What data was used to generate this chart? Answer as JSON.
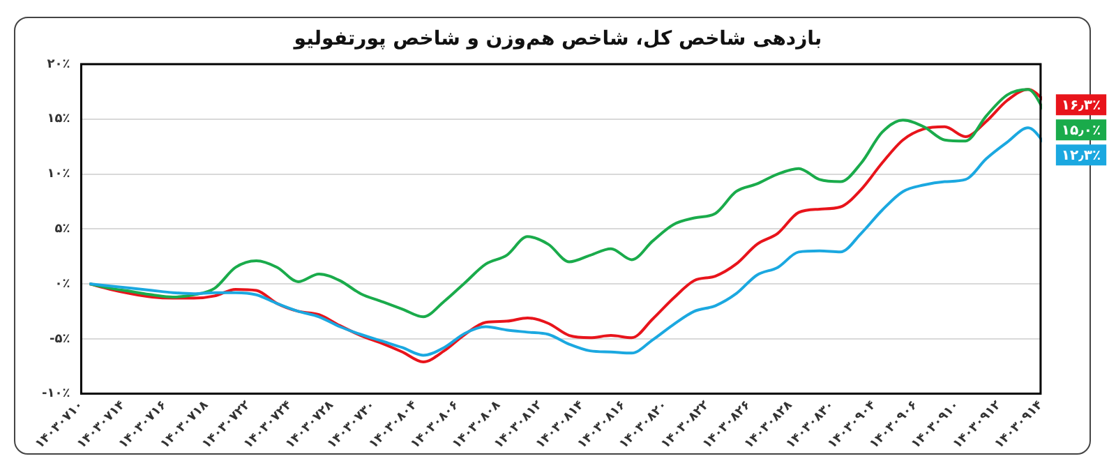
{
  "chart_data": {
    "type": "line",
    "title": "بازدهی شاخص کل، شاخص هم‌وزن و شاخص پورتفولیو",
    "categories": [
      "۱۴۰۳۰۷۱۰",
      null,
      "۱۴۰۳۰۷۱۴",
      null,
      "۱۴۰۳۰۷۱۶",
      null,
      "۱۴۰۳۰۷۱۸",
      null,
      "۱۴۰۳۰۷۲۲",
      null,
      "۱۴۰۳۰۷۲۴",
      null,
      "۱۴۰۳۰۷۲۸",
      null,
      "۱۴۰۳۰۷۳۰",
      null,
      "۱۴۰۳۰۸۰۴",
      null,
      "۱۴۰۳۰۸۰۶",
      null,
      "۱۴۰۳۰۸۰۸",
      null,
      "۱۴۰۳۰۸۱۲",
      null,
      "۱۴۰۳۰۸۱۴",
      null,
      "۱۴۰۳۰۸۱۶",
      null,
      "۱۴۰۳۰۸۲۰",
      null,
      "۱۴۰۳۰۸۲۲",
      null,
      "۱۴۰۳۰۸۲۶",
      null,
      "۱۴۰۳۰۸۲۸",
      null,
      "۱۴۰۳۰۸۳۰",
      null,
      "۱۴۰۳۰۹۰۴",
      null,
      "۱۴۰۳۰۹۰۶",
      null,
      "۱۴۰۳۰۹۱۰",
      null,
      "۱۴۰۳۰۹۱۲",
      null,
      "۱۴۰۳۰۹۱۴"
    ],
    "series": [
      {
        "color": "#1ba8e0",
        "values": [
          0,
          -0.2,
          -0.4,
          -0.6,
          -0.8,
          -0.9,
          -0.8,
          -0.8,
          -1.0,
          -1.8,
          -2.5,
          -3.0,
          -3.9,
          -4.6,
          -5.2,
          -5.8,
          -6.5,
          -5.8,
          -4.5,
          -3.9,
          -4.2,
          -4.4,
          -4.6,
          -5.5,
          -6.1,
          -6.2,
          -6.3,
          -5.1,
          -3.7,
          -2.5,
          -2.0,
          -0.9,
          0.8,
          1.5,
          2.9,
          3.0,
          2.9,
          4.6,
          6.7,
          8.4,
          9.0,
          9.3,
          9.5,
          11.4,
          12.9,
          14.2,
          12.3
        ],
        "value_labels": [
          null,
          null,
          null,
          null,
          null,
          null,
          null,
          null,
          null,
          null,
          null,
          null,
          null,
          null,
          null,
          null,
          null,
          null,
          null,
          null,
          null,
          null,
          null,
          null,
          null,
          null,
          null,
          null,
          null,
          null,
          null,
          null,
          null,
          null,
          null,
          null,
          null,
          null,
          null,
          null,
          null,
          null,
          null,
          null,
          null,
          null,
          "۱۲٫۳٪"
        ]
      },
      {
        "color": "#1aab4b",
        "values": [
          0,
          -0.4,
          -0.7,
          -1.0,
          -1.2,
          -1.0,
          -0.4,
          1.5,
          2.1,
          1.5,
          0.2,
          0.9,
          0.3,
          -0.9,
          -1.6,
          -2.3,
          -3.0,
          -1.6,
          0.1,
          1.8,
          2.6,
          4.3,
          3.6,
          2.0,
          2.6,
          3.2,
          2.2,
          3.9,
          5.4,
          6.0,
          6.4,
          8.4,
          9.1,
          10.0,
          10.5,
          9.5,
          9.3,
          11.0,
          13.8,
          14.9,
          14.3,
          13.1,
          13.0,
          15.3,
          17.2,
          17.7,
          15.0
        ],
        "value_labels": [
          null,
          null,
          null,
          null,
          null,
          null,
          null,
          null,
          null,
          null,
          null,
          null,
          null,
          null,
          null,
          null,
          null,
          null,
          null,
          null,
          null,
          null,
          null,
          null,
          null,
          null,
          null,
          null,
          null,
          null,
          null,
          null,
          null,
          null,
          null,
          null,
          null,
          null,
          null,
          null,
          null,
          null,
          null,
          null,
          null,
          null,
          "۱۵٫۰٪"
        ]
      },
      {
        "color": "#e8141b",
        "values": [
          0,
          -0.5,
          -0.9,
          -1.2,
          -1.3,
          -1.3,
          -1.1,
          -0.5,
          -0.6,
          -1.8,
          -2.5,
          -2.8,
          -3.8,
          -4.7,
          -5.4,
          -6.2,
          -7.1,
          -6.1,
          -4.6,
          -3.5,
          -3.4,
          -3.1,
          -3.6,
          -4.7,
          -4.9,
          -4.7,
          -4.9,
          -3.2,
          -1.3,
          0.3,
          0.7,
          1.8,
          3.6,
          4.6,
          6.5,
          6.8,
          7.0,
          8.6,
          11.0,
          13.1,
          14.1,
          14.3,
          13.4,
          14.8,
          16.7,
          17.7,
          16.3
        ],
        "value_labels": [
          null,
          null,
          null,
          null,
          null,
          null,
          null,
          null,
          null,
          null,
          null,
          null,
          null,
          null,
          null,
          null,
          null,
          null,
          null,
          null,
          null,
          null,
          null,
          null,
          null,
          null,
          null,
          null,
          null,
          null,
          null,
          null,
          null,
          null,
          null,
          null,
          null,
          null,
          null,
          null,
          null,
          null,
          null,
          null,
          null,
          null,
          "۱۶٫۳٪"
        ]
      }
    ],
    "ylim": [
      -10,
      20
    ],
    "yticks": [
      {
        "value": -10,
        "label": "-۱۰٪"
      },
      {
        "value": -5,
        "label": "-۵٪"
      },
      {
        "value": 0,
        "label": "۰٪"
      },
      {
        "value": 5,
        "label": "۵٪"
      },
      {
        "value": 10,
        "label": "۱۰٪"
      },
      {
        "value": 15,
        "label": "۱۵٪"
      },
      {
        "value": 20,
        "label": "۲۰٪"
      }
    ],
    "grid": "y",
    "legend": false,
    "marker": "none",
    "line_style": "solid"
  }
}
